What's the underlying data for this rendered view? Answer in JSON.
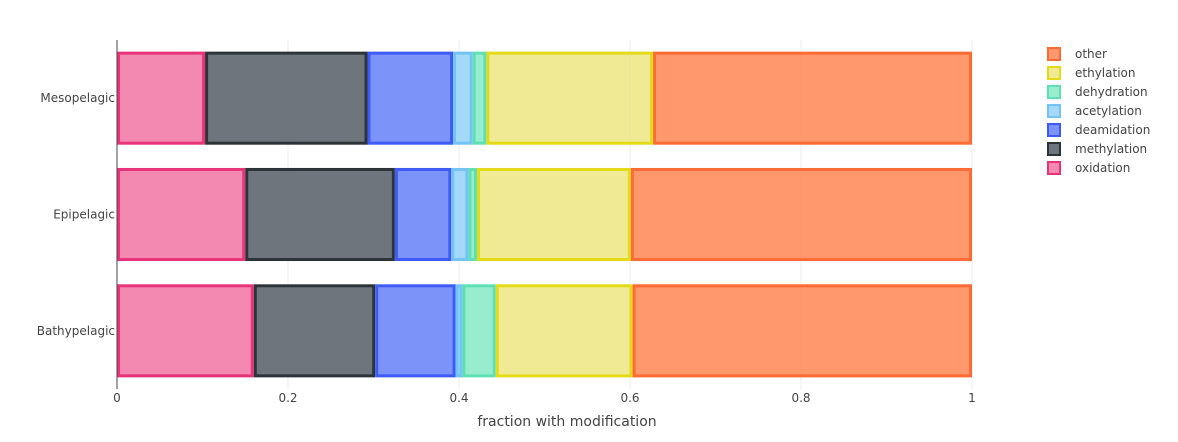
{
  "chart_data": {
    "type": "bar",
    "orientation": "horizontal",
    "barmode": "stack",
    "categories": [
      "Bathypelagic",
      "Epipelagic",
      "Mesopelagic"
    ],
    "series": [
      {
        "name": "oxidation",
        "fill": "#f06a9d",
        "line": "#e8337a",
        "values": [
          0.16,
          0.15,
          0.103
        ]
      },
      {
        "name": "methylation",
        "fill": "#4b535b",
        "line": "#2d3439",
        "values": [
          0.142,
          0.175,
          0.19
        ]
      },
      {
        "name": "deamidation",
        "fill": "#5b78f8",
        "line": "#3e5bf5",
        "values": [
          0.094,
          0.066,
          0.1
        ]
      },
      {
        "name": "acetylation",
        "fill": "#8fd0f8",
        "line": "#73c4f5",
        "values": [
          0.008,
          0.02,
          0.023
        ]
      },
      {
        "name": "dehydration",
        "fill": "#7de8c1",
        "line": "#5ee0b4",
        "values": [
          0.039,
          0.01,
          0.016
        ]
      },
      {
        "name": "ethylation",
        "fill": "#ece57b",
        "line": "#e3da18",
        "values": [
          0.16,
          0.18,
          0.195
        ]
      },
      {
        "name": "other",
        "fill": "#ff8048",
        "line": "#ff6b35",
        "values": [
          0.397,
          0.399,
          0.373
        ]
      }
    ],
    "xlabel": "fraction with modification",
    "ylabel": "",
    "xlim": [
      0,
      1
    ],
    "xticks": [
      "0",
      "0.2",
      "0.4",
      "0.6",
      "0.8",
      "1"
    ],
    "grid": true,
    "legend_position": "top-right"
  }
}
